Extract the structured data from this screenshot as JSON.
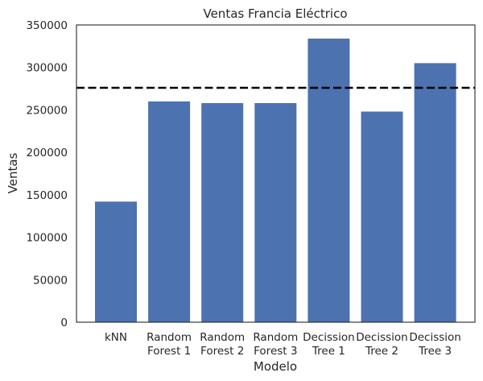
{
  "chart_data": {
    "type": "bar",
    "title": "Ventas Francia Eléctrico",
    "xlabel": "Modelo",
    "ylabel": "Ventas",
    "categories": [
      [
        "kNN"
      ],
      [
        "Random",
        "Forest 1"
      ],
      [
        "Random",
        "Forest 2"
      ],
      [
        "Random",
        "Forest 3"
      ],
      [
        "Decission",
        "Tree 1"
      ],
      [
        "Decission",
        "Tree 2"
      ],
      [
        "Decission",
        "Tree 3"
      ]
    ],
    "values": [
      142000,
      260000,
      258000,
      258000,
      334000,
      248000,
      305000
    ],
    "reference_line": {
      "value": 276000,
      "style": "dashed",
      "color": "#000000"
    },
    "ylim": [
      0,
      350000
    ],
    "yticks": [
      "0",
      "50000",
      "100000",
      "150000",
      "200000",
      "250000",
      "300000",
      "350000"
    ],
    "bar_color": "#4c72b0",
    "grid": false,
    "legend": "none"
  }
}
